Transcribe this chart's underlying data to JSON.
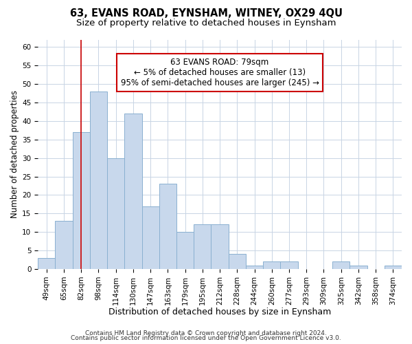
{
  "title": "63, EVANS ROAD, EYNSHAM, WITNEY, OX29 4QU",
  "subtitle": "Size of property relative to detached houses in Eynsham",
  "xlabel": "Distribution of detached houses by size in Eynsham",
  "ylabel": "Number of detached properties",
  "bar_labels": [
    "49sqm",
    "65sqm",
    "82sqm",
    "98sqm",
    "114sqm",
    "130sqm",
    "147sqm",
    "163sqm",
    "179sqm",
    "195sqm",
    "212sqm",
    "228sqm",
    "244sqm",
    "260sqm",
    "277sqm",
    "293sqm",
    "309sqm",
    "325sqm",
    "342sqm",
    "358sqm",
    "374sqm"
  ],
  "bar_heights": [
    3,
    13,
    37,
    48,
    30,
    42,
    17,
    23,
    10,
    12,
    12,
    4,
    1,
    2,
    2,
    0,
    0,
    2,
    1,
    0,
    1
  ],
  "bar_color": "#c8d8ec",
  "bar_edge_color": "#8ab0d0",
  "vline_x": 2,
  "vline_color": "#cc0000",
  "annotation_text": "63 EVANS ROAD: 79sqm\n← 5% of detached houses are smaller (13)\n95% of semi-detached houses are larger (245) →",
  "annotation_box_edge_color": "#cc0000",
  "annotation_box_face_color": "#ffffff",
  "ylim": [
    0,
    62
  ],
  "yticks": [
    0,
    5,
    10,
    15,
    20,
    25,
    30,
    35,
    40,
    45,
    50,
    55,
    60
  ],
  "footnote1": "Contains HM Land Registry data © Crown copyright and database right 2024.",
  "footnote2": "Contains public sector information licensed under the Open Government Licence v3.0.",
  "bg_color": "#ffffff",
  "grid_color": "#c8d4e4",
  "title_fontsize": 10.5,
  "subtitle_fontsize": 9.5,
  "xlabel_fontsize": 9,
  "ylabel_fontsize": 8.5,
  "tick_fontsize": 7.5,
  "annotation_fontsize": 8.5,
  "footnote_fontsize": 6.5
}
